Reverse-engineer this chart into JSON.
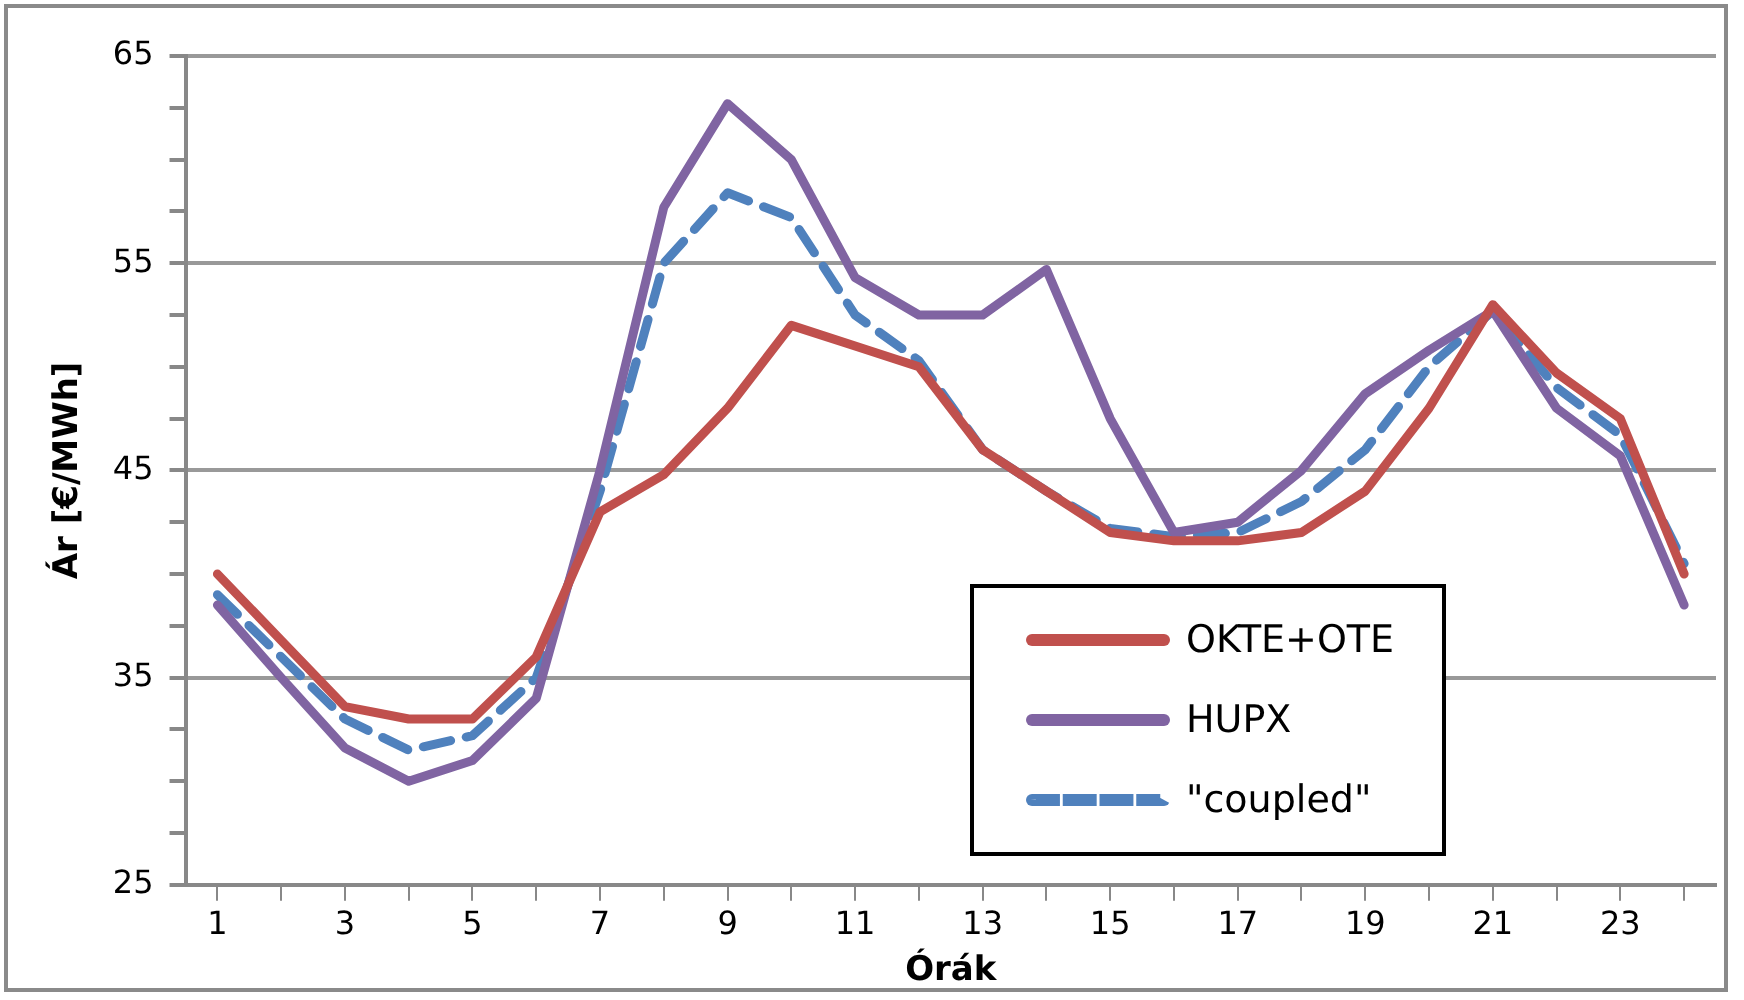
{
  "chart_data": {
    "type": "line",
    "xlabel": "Órák",
    "ylabel": "Ár [€/MWh]",
    "x": [
      1,
      2,
      3,
      4,
      5,
      6,
      7,
      8,
      9,
      10,
      11,
      12,
      13,
      14,
      15,
      16,
      17,
      18,
      19,
      20,
      21,
      22,
      23,
      24
    ],
    "xlim": [
      0.5,
      24.5
    ],
    "xticks": [
      1,
      {
        "value": 2,
        "label": null
      },
      3,
      {
        "value": 4,
        "label": null
      },
      5,
      {
        "value": 6,
        "label": null
      },
      7,
      {
        "value": 8,
        "label": null
      },
      9,
      {
        "value": 10,
        "label": null
      },
      11,
      {
        "value": 12,
        "label": null
      },
      13,
      {
        "value": 14,
        "label": null
      },
      15,
      {
        "value": 16,
        "label": null
      },
      17,
      {
        "value": 18,
        "label": null
      },
      19,
      {
        "value": 20,
        "label": null
      },
      21,
      {
        "value": 22,
        "label": null
      },
      23,
      {
        "value": 24,
        "label": null
      }
    ],
    "series": [
      {
        "name": "OKTE+OTE",
        "color": "#c0504d",
        "line_style": "solid",
        "values": [
          40,
          36.8,
          33.6,
          33,
          33,
          36,
          43,
          44.8,
          48,
          52,
          51,
          50,
          46,
          44,
          42,
          41.6,
          41.6,
          42,
          44,
          48,
          53,
          49.7,
          47.5,
          40
        ]
      },
      {
        "name": "HUPX",
        "color": "#8064a2",
        "line_style": "solid",
        "values": [
          38.5,
          35,
          31.6,
          30,
          31,
          34,
          45,
          57.7,
          62.7,
          60,
          54.3,
          52.5,
          52.5,
          54.7,
          47.5,
          42,
          42.5,
          45,
          48.7,
          50.8,
          52.7,
          48,
          45.7,
          38.5
        ]
      },
      {
        "name": "\"coupled\"",
        "color": "#4f81bd",
        "line_style": "dashed",
        "values": [
          39,
          36,
          33,
          31.5,
          32.2,
          35,
          44,
          55,
          58.4,
          57.2,
          52.5,
          50.3,
          46,
          44,
          42.2,
          41.8,
          42,
          43.5,
          46,
          50,
          52.7,
          49,
          46.7,
          40.5
        ]
      }
    ],
    "ylim": [
      25,
      65
    ],
    "yticks": [
      25,
      {
        "value": 27.5,
        "label": null
      },
      {
        "value": 30,
        "label": null
      },
      {
        "value": 32.5,
        "label": null
      },
      35,
      {
        "value": 37.5,
        "label": null
      },
      {
        "value": 40,
        "label": null
      },
      {
        "value": 42.5,
        "label": null
      },
      45,
      {
        "value": 47.5,
        "label": null
      },
      {
        "value": 50,
        "label": null
      },
      {
        "value": 52.5,
        "label": null
      },
      55,
      {
        "value": 57.5,
        "label": null
      },
      {
        "value": 60,
        "label": null
      },
      {
        "value": 62.5,
        "label": null
      },
      65
    ],
    "grid": "y",
    "legend": "bottom right",
    "marker": "none"
  }
}
